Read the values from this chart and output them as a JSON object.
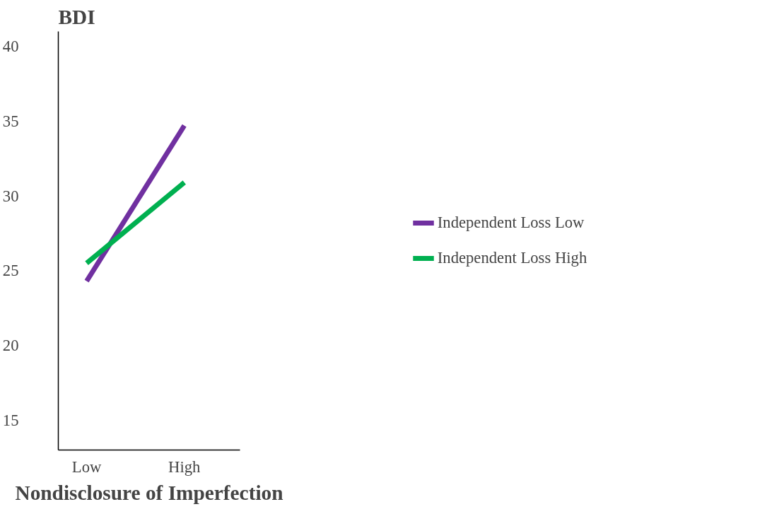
{
  "chart_data": {
    "type": "line",
    "title": "BDI",
    "xlabel": "Nondisclosure of Imperfection",
    "categories": [
      "Low",
      "High"
    ],
    "ylim": [
      13,
      41
    ],
    "yticks": [
      15,
      20,
      25,
      30,
      35,
      40
    ],
    "series": [
      {
        "name": "Independent Loss Low",
        "color": "#7030a0",
        "values": [
          24.3,
          34.7
        ]
      },
      {
        "name": "Independent Loss High",
        "color": "#00b050",
        "values": [
          25.5,
          30.9
        ]
      }
    ],
    "grid": false,
    "legend": "right",
    "marker": "none",
    "line_style": "solid"
  }
}
